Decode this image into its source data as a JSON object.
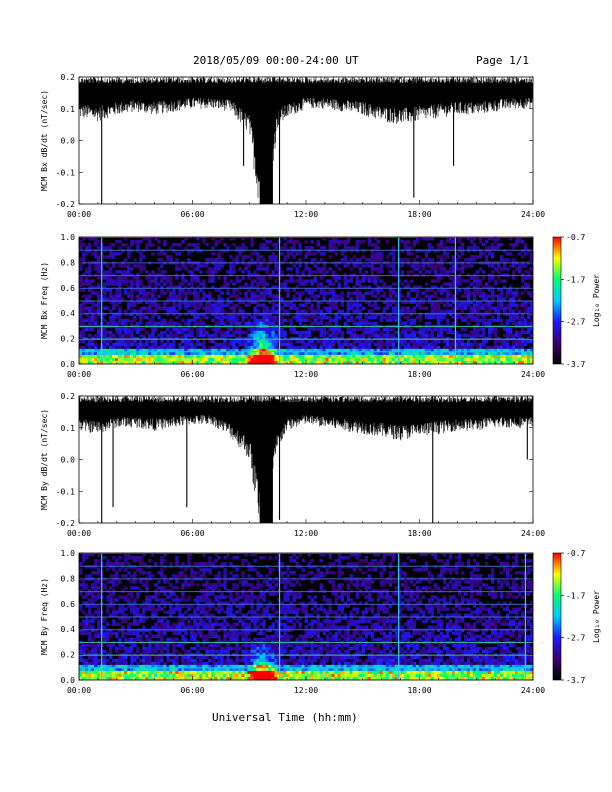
{
  "header": {
    "title": "2018/05/09  00:00-24:00 UT",
    "page": "Page 1/1"
  },
  "footer": {
    "xlabel": "Universal Time (hh:mm)"
  },
  "colors": {
    "trace": "#000000",
    "colormap": [
      "#000000",
      "#3a0070",
      "#1a1aff",
      "#00c8ff",
      "#00ff70",
      "#ffff00",
      "#ff0000"
    ]
  },
  "chart_data": [
    {
      "type": "line",
      "ylabel": "MCM Bx dB/dt (nT/sec)",
      "x_ticks": [
        "00:00",
        "06:00",
        "12:00",
        "18:00",
        "24:00"
      ],
      "xlim": [
        0,
        24
      ],
      "ylim": [
        -0.2,
        0.2
      ],
      "y_ticks": [
        "0.2",
        "0.1",
        "0.0",
        "-0.1",
        "-0.2"
      ],
      "envelope": {
        "top": 0.2,
        "bottom_hours": [
          0,
          1,
          2,
          3,
          4,
          5,
          6,
          7,
          8,
          9,
          9.5,
          10,
          10.5,
          11,
          12,
          13,
          14,
          15,
          16,
          17,
          18,
          19,
          20,
          21,
          22,
          23,
          24
        ],
        "bottom_values": [
          0.07,
          0.06,
          0.08,
          0.09,
          0.08,
          0.09,
          0.1,
          0.1,
          0.09,
          0.02,
          -0.2,
          -0.2,
          0.04,
          0.07,
          0.1,
          0.1,
          0.09,
          0.08,
          0.06,
          0.05,
          0.06,
          0.07,
          0.08,
          0.08,
          0.09,
          0.1,
          0.1
        ]
      },
      "spikes": [
        {
          "x": 1.2,
          "y": -0.2
        },
        {
          "x": 8.7,
          "y": -0.08
        },
        {
          "x": 9.5,
          "y": -0.11
        },
        {
          "x": 10.6,
          "y": -0.2
        },
        {
          "x": 17.7,
          "y": -0.18
        },
        {
          "x": 19.8,
          "y": -0.08
        }
      ]
    },
    {
      "type": "heatmap",
      "ylabel": "MCM Bx Freq (Hz)",
      "x_ticks": [
        "00:00",
        "06:00",
        "12:00",
        "18:00",
        "24:00"
      ],
      "xlim": [
        0,
        24
      ],
      "ylim": [
        0,
        1.0
      ],
      "y_ticks": [
        "1.0",
        "0.8",
        "0.6",
        "0.4",
        "0.2",
        "0.0"
      ],
      "colorbar": {
        "label": "Log₁₀ Power",
        "ticks": [
          "-0.7",
          "-1.7",
          "-2.7",
          "-3.7"
        ],
        "range": [
          -3.7,
          -0.7
        ]
      },
      "harmonic_lines_hz": [
        0.1,
        0.2,
        0.3,
        0.4,
        0.5,
        0.6,
        0.7,
        0.8,
        0.9,
        1.0
      ],
      "vertical_events_hours": [
        1.2,
        10.6,
        16.9,
        19.9
      ],
      "burst": {
        "center_hour": 9.7,
        "max_freq_hz": 0.4
      }
    },
    {
      "type": "line",
      "ylabel": "MCM By dB/dt (nT/sec)",
      "x_ticks": [
        "00:00",
        "06:00",
        "12:00",
        "18:00",
        "24:00"
      ],
      "xlim": [
        0,
        24
      ],
      "ylim": [
        -0.2,
        0.2
      ],
      "y_ticks": [
        "0.2",
        "0.1",
        "0.0",
        "-0.1",
        "-0.2"
      ],
      "envelope": {
        "top": 0.2,
        "bottom_hours": [
          0,
          1,
          2,
          3,
          4,
          5,
          6,
          7,
          8,
          9,
          9.5,
          10,
          10.5,
          11,
          12,
          13,
          14,
          15,
          16,
          17,
          18,
          19,
          20,
          21,
          22,
          23,
          24
        ],
        "bottom_values": [
          0.09,
          0.08,
          0.1,
          0.1,
          0.09,
          0.1,
          0.11,
          0.11,
          0.07,
          0.0,
          -0.2,
          -0.2,
          0.03,
          0.09,
          0.11,
          0.1,
          0.09,
          0.08,
          0.07,
          0.06,
          0.07,
          0.08,
          0.09,
          0.09,
          0.1,
          0.1,
          0.1
        ]
      },
      "spikes": [
        {
          "x": 1.2,
          "y": -0.2
        },
        {
          "x": 1.8,
          "y": -0.15
        },
        {
          "x": 5.7,
          "y": -0.15
        },
        {
          "x": 10.6,
          "y": -0.19
        },
        {
          "x": 18.7,
          "y": -0.2
        },
        {
          "x": 23.7,
          "y": 0.0
        }
      ]
    },
    {
      "type": "heatmap",
      "ylabel": "MCM By Freq (Hz)",
      "x_ticks": [
        "00:00",
        "06:00",
        "12:00",
        "18:00",
        "24:00"
      ],
      "xlim": [
        0,
        24
      ],
      "ylim": [
        0,
        1.0
      ],
      "y_ticks": [
        "1.0",
        "0.8",
        "0.6",
        "0.4",
        "0.2",
        "0.0"
      ],
      "colorbar": {
        "label": "Log₁₀ Power",
        "ticks": [
          "-0.7",
          "-1.7",
          "-2.7",
          "-3.7"
        ],
        "range": [
          -3.7,
          -0.7
        ]
      },
      "harmonic_lines_hz": [
        0.1,
        0.2,
        0.3,
        0.4,
        0.5,
        0.6,
        0.7,
        0.8,
        0.9,
        1.0
      ],
      "vertical_events_hours": [
        1.2,
        10.6,
        16.9,
        23.6
      ],
      "burst": {
        "center_hour": 9.7,
        "max_freq_hz": 0.3
      }
    }
  ]
}
